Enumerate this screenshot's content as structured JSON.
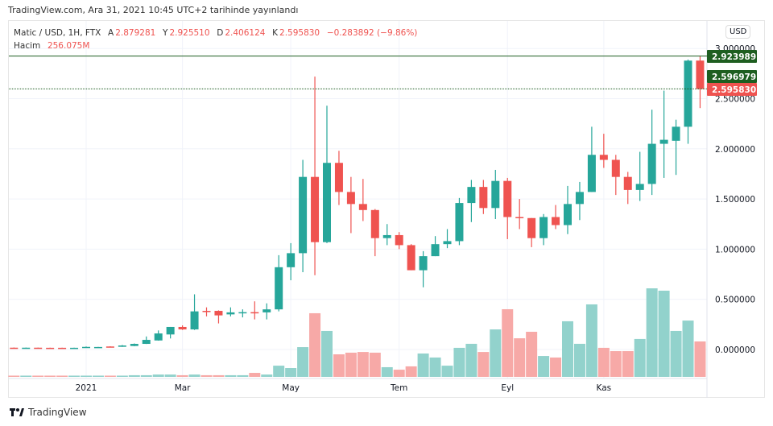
{
  "header": {
    "published": "TradingView.com, Ara 31, 2021 10:45 UTC+2 tarihinde yayınlandı"
  },
  "legend": {
    "symbol": "Matic / USD, 1H, FTX",
    "open_label": "A",
    "open": "2.879281",
    "high_label": "Y",
    "high": "2.925510",
    "low_label": "D",
    "low": "2.406124",
    "close_label": "K",
    "close": "2.595830",
    "change": "−0.283892 (−9.86%)",
    "volume_label": "Hacim",
    "volume": "256.075M"
  },
  "currency_button": "USD",
  "footer": {
    "brand": "TradingView"
  },
  "colors": {
    "up": "#26a69a",
    "down": "#ef5350",
    "up_volume": "#92d2cc",
    "down_volume": "#f7a9a7",
    "marker_green": "#1e5e20"
  },
  "price_markers": [
    {
      "label": "2.923989",
      "value": 2.923989,
      "color": "#1e5e20",
      "line": "solid"
    },
    {
      "label": "2.596979",
      "value": 2.596979,
      "color": "#1e5e20",
      "line": "dotted"
    },
    {
      "label": "2.595830",
      "value": 2.59583,
      "color": "#ef5350",
      "line": "none"
    }
  ],
  "chart_data": {
    "type": "candlestick",
    "interval": "1 week",
    "ylim": [
      -0.27,
      3.28
    ],
    "grid": true,
    "y_ticks": [
      "3.000000",
      "2.500000",
      "2.000000",
      "1.500000",
      "1.000000",
      "0.500000",
      "0.000000"
    ],
    "y_tick_values": [
      3.0,
      2.5,
      2.0,
      1.5,
      1.0,
      0.5,
      0.0
    ],
    "x_ticks": [
      "2021",
      "Mar",
      "May",
      "Tem",
      "Eyl",
      "Kas"
    ],
    "ohlc": [
      [
        0.018,
        0.02,
        0.016,
        0.017
      ],
      [
        0.017,
        0.019,
        0.016,
        0.018
      ],
      [
        0.018,
        0.019,
        0.016,
        0.017
      ],
      [
        0.017,
        0.018,
        0.015,
        0.016
      ],
      [
        0.017,
        0.018,
        0.015,
        0.016
      ],
      [
        0.016,
        0.018,
        0.015,
        0.017
      ],
      [
        0.017,
        0.03,
        0.016,
        0.026
      ],
      [
        0.022,
        0.026,
        0.02,
        0.025
      ],
      [
        0.03,
        0.032,
        0.026,
        0.027
      ],
      [
        0.027,
        0.045,
        0.026,
        0.04
      ],
      [
        0.035,
        0.06,
        0.033,
        0.056
      ],
      [
        0.056,
        0.13,
        0.055,
        0.096
      ],
      [
        0.09,
        0.19,
        0.088,
        0.16
      ],
      [
        0.15,
        0.225,
        0.11,
        0.225
      ],
      [
        0.225,
        0.24,
        0.195,
        0.2
      ],
      [
        0.2,
        0.55,
        0.195,
        0.38
      ],
      [
        0.385,
        0.42,
        0.33,
        0.375
      ],
      [
        0.385,
        0.39,
        0.26,
        0.34
      ],
      [
        0.35,
        0.42,
        0.33,
        0.37
      ],
      [
        0.365,
        0.4,
        0.32,
        0.372
      ],
      [
        0.372,
        0.48,
        0.3,
        0.362
      ],
      [
        0.37,
        0.46,
        0.3,
        0.4
      ],
      [
        0.4,
        0.94,
        0.38,
        0.82
      ],
      [
        0.82,
        1.06,
        0.69,
        0.96
      ],
      [
        0.96,
        1.89,
        0.77,
        1.72
      ],
      [
        1.72,
        2.72,
        0.74,
        1.07
      ],
      [
        1.07,
        2.43,
        1.06,
        1.86
      ],
      [
        1.86,
        1.98,
        1.44,
        1.57
      ],
      [
        1.57,
        1.72,
        1.16,
        1.45
      ],
      [
        1.45,
        1.7,
        1.28,
        1.39
      ],
      [
        1.39,
        1.4,
        0.93,
        1.11
      ],
      [
        1.11,
        1.25,
        1.04,
        1.14
      ],
      [
        1.14,
        1.17,
        1.0,
        1.04
      ],
      [
        1.04,
        1.05,
        0.79,
        0.79
      ],
      [
        0.79,
        0.98,
        0.62,
        0.93
      ],
      [
        0.93,
        1.13,
        0.93,
        1.05
      ],
      [
        1.05,
        1.2,
        1.01,
        1.08
      ],
      [
        1.08,
        1.51,
        1.04,
        1.46
      ],
      [
        1.46,
        1.69,
        1.27,
        1.62
      ],
      [
        1.62,
        1.69,
        1.35,
        1.41
      ],
      [
        1.41,
        1.79,
        1.3,
        1.68
      ],
      [
        1.68,
        1.71,
        1.1,
        1.32
      ],
      [
        1.32,
        1.5,
        1.2,
        1.31
      ],
      [
        1.31,
        1.31,
        1.02,
        1.11
      ],
      [
        1.11,
        1.35,
        1.04,
        1.32
      ],
      [
        1.32,
        1.44,
        1.2,
        1.24
      ],
      [
        1.24,
        1.63,
        1.15,
        1.45
      ],
      [
        1.45,
        1.67,
        1.29,
        1.57
      ],
      [
        1.57,
        2.22,
        1.57,
        1.94
      ],
      [
        1.94,
        2.15,
        1.81,
        1.89
      ],
      [
        1.89,
        1.94,
        1.54,
        1.72
      ],
      [
        1.72,
        1.77,
        1.45,
        1.59
      ],
      [
        1.59,
        1.97,
        1.48,
        1.65
      ],
      [
        1.65,
        2.39,
        1.54,
        2.05
      ],
      [
        2.05,
        2.58,
        1.71,
        2.09
      ],
      [
        2.08,
        2.29,
        1.74,
        2.22
      ],
      [
        2.22,
        2.89,
        2.05,
        2.879
      ],
      [
        2.879281,
        2.92551,
        2.406124,
        2.59583
      ]
    ],
    "volume_millions": [
      9,
      9,
      9,
      9,
      9,
      9,
      9,
      9,
      9,
      9,
      12,
      12,
      17,
      17,
      12,
      17,
      12,
      12,
      12,
      12,
      29,
      17,
      81,
      64,
      215,
      460,
      332,
      163,
      175,
      180,
      175,
      70,
      52,
      76,
      169,
      140,
      81,
      210,
      239,
      180,
      343,
      489,
      279,
      326,
      151,
      140,
      402,
      239,
      524,
      210,
      186,
      186,
      274,
      640,
      623,
      332,
      407,
      256
    ]
  }
}
